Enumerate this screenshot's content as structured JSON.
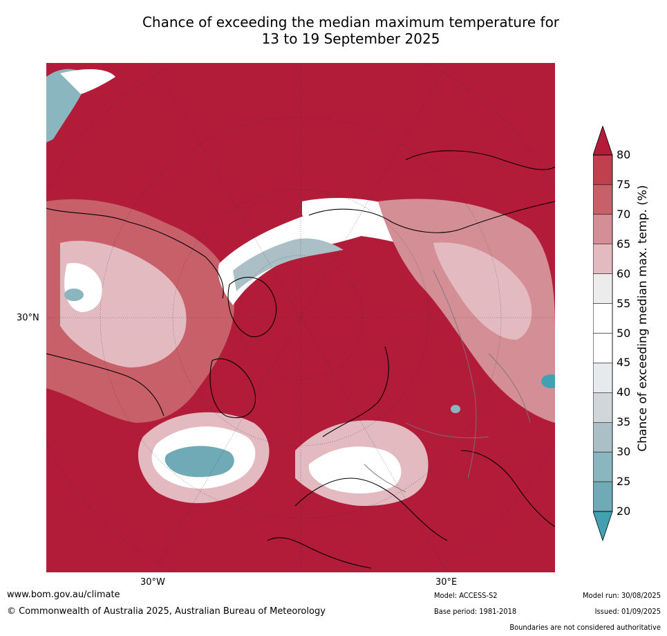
{
  "title": {
    "line1": "Chance of exceeding the median maximum temperature for",
    "line2": "13 to 19 September 2025"
  },
  "map": {
    "projection": "north polar stereographic",
    "lat_label": "30°N",
    "lon_labels": {
      "west": "30°W",
      "east": "30°E"
    },
    "colors": {
      "c80": "#b21c38",
      "c75": "#c0404e",
      "c70": "#c8606a",
      "c65": "#d48f96",
      "c60": "#e2bac0",
      "c55": "#ececec",
      "c50": "#ffffff",
      "c45": "#e6eaed",
      "c40": "#d1d6da",
      "c35": "#aabfc6",
      "c30": "#8ab6c0",
      "c25": "#6faab6",
      "c20": "#42a0b0"
    }
  },
  "colorbar": {
    "label": "Chance of exceeding median max. temp. (%)",
    "ticks": [
      "80",
      "75",
      "70",
      "65",
      "60",
      "55",
      "50",
      "45",
      "40",
      "35",
      "30",
      "25",
      "20"
    ],
    "bands": [
      "#c0404e",
      "#c8606a",
      "#d48f96",
      "#e2bac0",
      "#ececec",
      "#ffffff",
      "#ffffff",
      "#e6eaed",
      "#d1d6da",
      "#aabfc6",
      "#8ab6c0",
      "#6faab6"
    ],
    "top_arrow": "#b21c38",
    "bottom_arrow": "#42a0b0"
  },
  "footer": {
    "website": "www.bom.gov.au/climate",
    "copyright": "© Commonwealth of Australia 2025, Australian Bureau of Meteorology",
    "model": "Model: ACCESS-S2",
    "base_period": "Base period: 1981-2018",
    "model_run": "Model run: 30/08/2025",
    "issued": "Issued: 01/09/2025",
    "disclaimer": "Boundaries are not considered authoritative"
  }
}
